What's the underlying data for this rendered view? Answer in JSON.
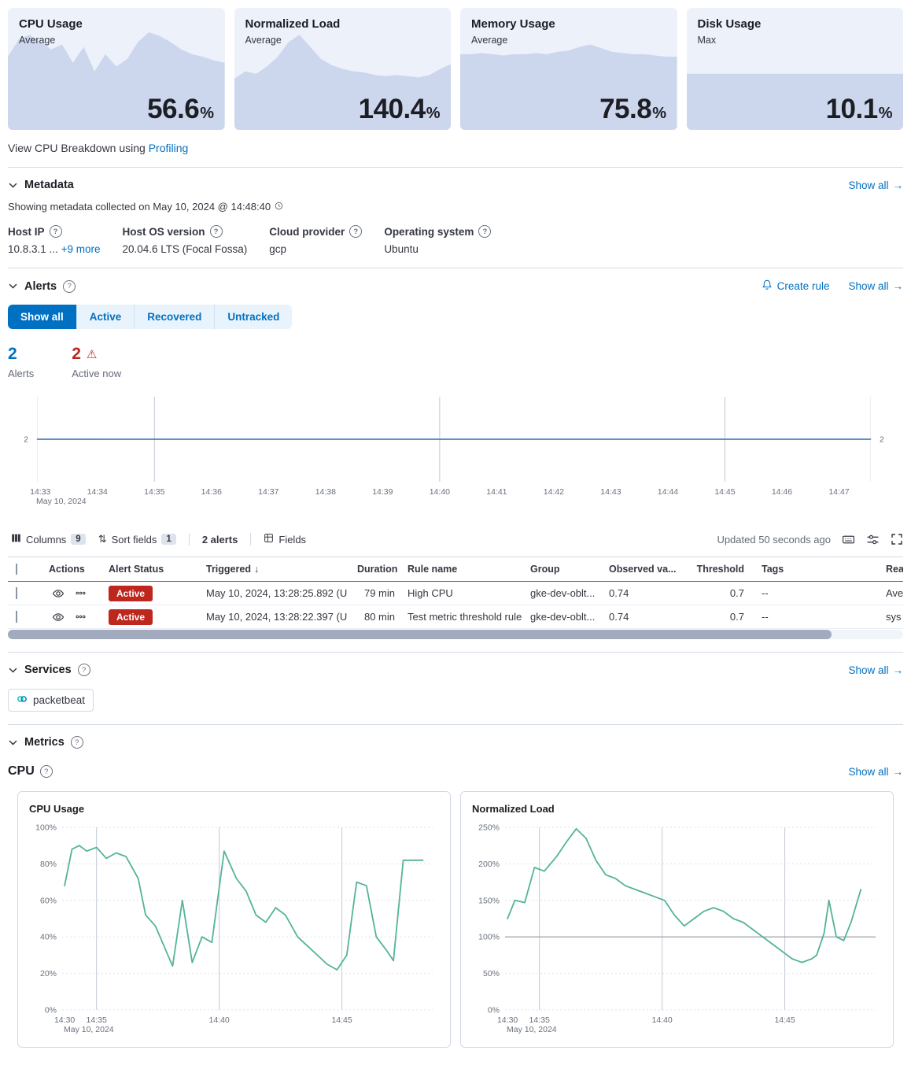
{
  "colors": {
    "accent_blue": "#0071c2",
    "danger_red": "#bd271e",
    "chart_green": "#54b399",
    "card_bg": "#edf1fa",
    "card_fill": "#ccd7ee",
    "timeline_blue": "#4c7fc0"
  },
  "icons": {
    "arrow_right": "→",
    "sort_arrow_down": "↓",
    "warning_triangle": "⚠",
    "sort_icon": "⇅",
    "question": "?"
  },
  "kpi_cards": [
    {
      "title": "CPU Usage",
      "subtitle": "Average",
      "value": "56.6",
      "unit": "%"
    },
    {
      "title": "Normalized Load",
      "subtitle": "Average",
      "value": "140.4",
      "unit": "%"
    },
    {
      "title": "Memory Usage",
      "subtitle": "Average",
      "value": "75.8",
      "unit": "%"
    },
    {
      "title": "Disk Usage",
      "subtitle": "Max",
      "value": "10.1",
      "unit": "%"
    }
  ],
  "profiling": {
    "prefix": "View CPU Breakdown using ",
    "link_label": "Profiling"
  },
  "metadata": {
    "title": "Metadata",
    "show_all": "Show all",
    "collected": "Showing metadata collected on May 10, 2024 @ 14:48:40",
    "fields": [
      {
        "label": "Host IP",
        "value": "10.8.3.1 ...",
        "extra": "+9 more"
      },
      {
        "label": "Host OS version",
        "value": "20.04.6 LTS (Focal Fossa)",
        "extra": ""
      },
      {
        "label": "Cloud provider",
        "value": "gcp",
        "extra": ""
      },
      {
        "label": "Operating system",
        "value": "Ubuntu",
        "extra": ""
      }
    ]
  },
  "alerts": {
    "title": "Alerts",
    "create_rule": "Create rule",
    "show_all": "Show all",
    "tabs": [
      {
        "label": "Show all"
      },
      {
        "label": "Active"
      },
      {
        "label": "Recovered"
      },
      {
        "label": "Untracked"
      }
    ],
    "stats": {
      "alerts_value": "2",
      "alerts_label": "Alerts",
      "active_value": "2",
      "active_label": "Active now"
    },
    "toolbar": {
      "columns_label": "Columns",
      "columns_count": "9",
      "sort_label": "Sort fields",
      "sort_count": "1",
      "alerts_count": "2 alerts",
      "fields_label": "Fields",
      "updated": "Updated 50 seconds ago"
    },
    "table": {
      "headers": {
        "actions": "Actions",
        "status": "Alert Status",
        "triggered": "Triggered",
        "duration": "Duration",
        "rule": "Rule name",
        "group": "Group",
        "observed": "Observed va...",
        "threshold": "Threshold",
        "tags": "Tags",
        "reason": "Rea"
      },
      "rows": [
        {
          "status": "Active",
          "triggered": "May 10, 2024, 13:28:25.892 (U",
          "duration": "79 min",
          "rule": "High CPU",
          "group": "gke-dev-oblt...",
          "observed": "0.74",
          "threshold": "0.7",
          "tags": "--",
          "reason": "Ave"
        },
        {
          "status": "Active",
          "triggered": "May 10, 2024, 13:28:22.397 (U",
          "duration": "80 min",
          "rule": "Test metric threshold rule",
          "group": "gke-dev-oblt...",
          "observed": "0.74",
          "threshold": "0.7",
          "tags": "--",
          "reason": "sys"
        }
      ]
    }
  },
  "services": {
    "title": "Services",
    "show_all": "Show all",
    "badge": "packetbeat"
  },
  "metrics": {
    "title": "Metrics",
    "cpu_heading": "CPU",
    "show_all": "Show all",
    "chart1_title": "CPU Usage",
    "chart2_title": "Normalized Load"
  },
  "chart_data": [
    {
      "id": "spark-cpu",
      "type": "area",
      "panel": "CPU Usage",
      "fill": "#ccd7ee",
      "ylim": [
        0,
        1
      ],
      "values": [
        0.6,
        0.74,
        0.78,
        0.72,
        0.66,
        0.7,
        0.55,
        0.68,
        0.48,
        0.62,
        0.52,
        0.58,
        0.72,
        0.8,
        0.77,
        0.72,
        0.66,
        0.62,
        0.6,
        0.57,
        0.55
      ]
    },
    {
      "id": "spark-load",
      "type": "area",
      "panel": "Normalized Load",
      "fill": "#ccd7ee",
      "ylim": [
        0,
        1
      ],
      "values": [
        0.42,
        0.48,
        0.46,
        0.52,
        0.6,
        0.72,
        0.78,
        0.68,
        0.58,
        0.53,
        0.5,
        0.48,
        0.47,
        0.45,
        0.44,
        0.45,
        0.44,
        0.43,
        0.45,
        0.5,
        0.54
      ]
    },
    {
      "id": "spark-memory",
      "type": "area",
      "panel": "Memory Usage",
      "fill": "#ccd7ee",
      "ylim": [
        0,
        1
      ],
      "values": [
        0.62,
        0.62,
        0.63,
        0.62,
        0.61,
        0.62,
        0.62,
        0.63,
        0.62,
        0.64,
        0.65,
        0.68,
        0.7,
        0.67,
        0.64,
        0.63,
        0.62,
        0.62,
        0.61,
        0.6,
        0.6
      ]
    },
    {
      "id": "spark-disk",
      "type": "area",
      "panel": "Disk Usage",
      "fill": "#ccd7ee",
      "ylim": [
        0,
        1
      ],
      "values": [
        0.46,
        0.46,
        0.46,
        0.46,
        0.46,
        0.46,
        0.46,
        0.46,
        0.46,
        0.46,
        0.46,
        0.46,
        0.46,
        0.46,
        0.46,
        0.46,
        0.46,
        0.46,
        0.46,
        0.46,
        0.46
      ]
    },
    {
      "id": "alerts-timeline",
      "type": "line",
      "color": "#4c7fc0",
      "xlim": [
        32.9,
        47.6
      ],
      "ylim": [
        0,
        4
      ],
      "margins": {
        "l": 34,
        "r": 28,
        "t": 6,
        "b": 36
      },
      "xticks": [
        {
          "t": 33,
          "label": "14:33"
        },
        {
          "t": 34,
          "label": "14:34"
        },
        {
          "t": 35,
          "label": "14:35"
        },
        {
          "t": 36,
          "label": "14:36"
        },
        {
          "t": 37,
          "label": "14:37"
        },
        {
          "t": 38,
          "label": "14:38"
        },
        {
          "t": 39,
          "label": "14:39"
        },
        {
          "t": 40,
          "label": "14:40"
        },
        {
          "t": 41,
          "label": "14:41"
        },
        {
          "t": 42,
          "label": "14:42"
        },
        {
          "t": 43,
          "label": "14:43"
        },
        {
          "t": 44,
          "label": "14:44"
        },
        {
          "t": 45,
          "label": "14:45"
        },
        {
          "t": 46,
          "label": "14:46"
        },
        {
          "t": 47,
          "label": "14:47"
        }
      ],
      "xgrid": [
        35,
        40,
        45
      ],
      "xgrid_light": [
        32.95,
        47.55
      ],
      "edge_labels": {
        "v": 2,
        "left": "2",
        "right": "2"
      },
      "date_label": "May 10, 2024",
      "points": [
        [
          32.95,
          2
        ],
        [
          47.55,
          2
        ]
      ]
    },
    {
      "id": "metric-cpu",
      "type": "line",
      "title": "CPU Usage",
      "color": "#54b399",
      "yunit": "%",
      "dotted_grid": true,
      "xlim": [
        33.6,
        48.7
      ],
      "ylim": [
        0,
        100
      ],
      "yticks": [
        0,
        20,
        40,
        60,
        80,
        100
      ],
      "margins": {
        "l": 44,
        "r": 8,
        "t": 8,
        "b": 36
      },
      "xticks": [
        {
          "t": 33.7,
          "label": "14:30"
        },
        {
          "t": 35,
          "label": "14:35"
        },
        {
          "t": 40,
          "label": "14:40"
        },
        {
          "t": 45,
          "label": "14:45"
        }
      ],
      "xgrid": [
        35,
        40,
        45
      ],
      "date_label": "May 10, 2024",
      "points": [
        [
          33.7,
          68
        ],
        [
          34.0,
          88
        ],
        [
          34.3,
          90
        ],
        [
          34.6,
          87
        ],
        [
          35.0,
          89
        ],
        [
          35.4,
          83
        ],
        [
          35.8,
          86
        ],
        [
          36.2,
          84
        ],
        [
          36.7,
          72
        ],
        [
          37.0,
          52
        ],
        [
          37.4,
          46
        ],
        [
          38.1,
          24
        ],
        [
          38.5,
          60
        ],
        [
          38.9,
          26
        ],
        [
          39.3,
          40
        ],
        [
          39.7,
          37
        ],
        [
          40.2,
          87
        ],
        [
          40.7,
          72
        ],
        [
          41.1,
          65
        ],
        [
          41.5,
          52
        ],
        [
          41.9,
          48
        ],
        [
          42.3,
          56
        ],
        [
          42.7,
          52
        ],
        [
          43.2,
          40
        ],
        [
          43.6,
          35
        ],
        [
          44.0,
          30
        ],
        [
          44.4,
          25
        ],
        [
          44.8,
          22
        ],
        [
          45.2,
          30
        ],
        [
          45.6,
          70
        ],
        [
          46.0,
          68
        ],
        [
          46.4,
          40
        ],
        [
          46.8,
          33
        ],
        [
          47.1,
          27
        ],
        [
          47.5,
          82
        ],
        [
          48.3,
          82
        ]
      ]
    },
    {
      "id": "metric-load",
      "type": "line",
      "title": "Normalized Load",
      "color": "#54b399",
      "yunit": "%",
      "dotted_grid": true,
      "xlim": [
        33.6,
        48.7
      ],
      "ylim": [
        0,
        250
      ],
      "yticks": [
        0,
        50,
        100,
        150,
        200,
        250
      ],
      "baseline": 100,
      "margins": {
        "l": 44,
        "r": 8,
        "t": 8,
        "b": 36
      },
      "xticks": [
        {
          "t": 33.7,
          "label": "14:30"
        },
        {
          "t": 35,
          "label": "14:35"
        },
        {
          "t": 40,
          "label": "14:40"
        },
        {
          "t": 45,
          "label": "14:45"
        }
      ],
      "xgrid": [
        35,
        40,
        45
      ],
      "date_label": "May 10, 2024",
      "points": [
        [
          33.7,
          125
        ],
        [
          34.0,
          150
        ],
        [
          34.4,
          147
        ],
        [
          34.8,
          195
        ],
        [
          35.2,
          190
        ],
        [
          35.7,
          210
        ],
        [
          36.1,
          230
        ],
        [
          36.5,
          248
        ],
        [
          36.9,
          235
        ],
        [
          37.3,
          205
        ],
        [
          37.7,
          185
        ],
        [
          38.1,
          180
        ],
        [
          38.5,
          170
        ],
        [
          38.9,
          165
        ],
        [
          39.3,
          160
        ],
        [
          39.7,
          155
        ],
        [
          40.1,
          150
        ],
        [
          40.5,
          130
        ],
        [
          40.9,
          115
        ],
        [
          41.3,
          125
        ],
        [
          41.7,
          135
        ],
        [
          42.1,
          140
        ],
        [
          42.5,
          135
        ],
        [
          42.9,
          125
        ],
        [
          43.3,
          120
        ],
        [
          43.7,
          110
        ],
        [
          44.1,
          100
        ],
        [
          44.5,
          90
        ],
        [
          44.9,
          80
        ],
        [
          45.3,
          70
        ],
        [
          45.7,
          65
        ],
        [
          46.1,
          70
        ],
        [
          46.3,
          75
        ],
        [
          46.6,
          105
        ],
        [
          46.8,
          150
        ],
        [
          47.1,
          100
        ],
        [
          47.4,
          95
        ],
        [
          47.7,
          120
        ],
        [
          48.1,
          165
        ]
      ]
    }
  ]
}
